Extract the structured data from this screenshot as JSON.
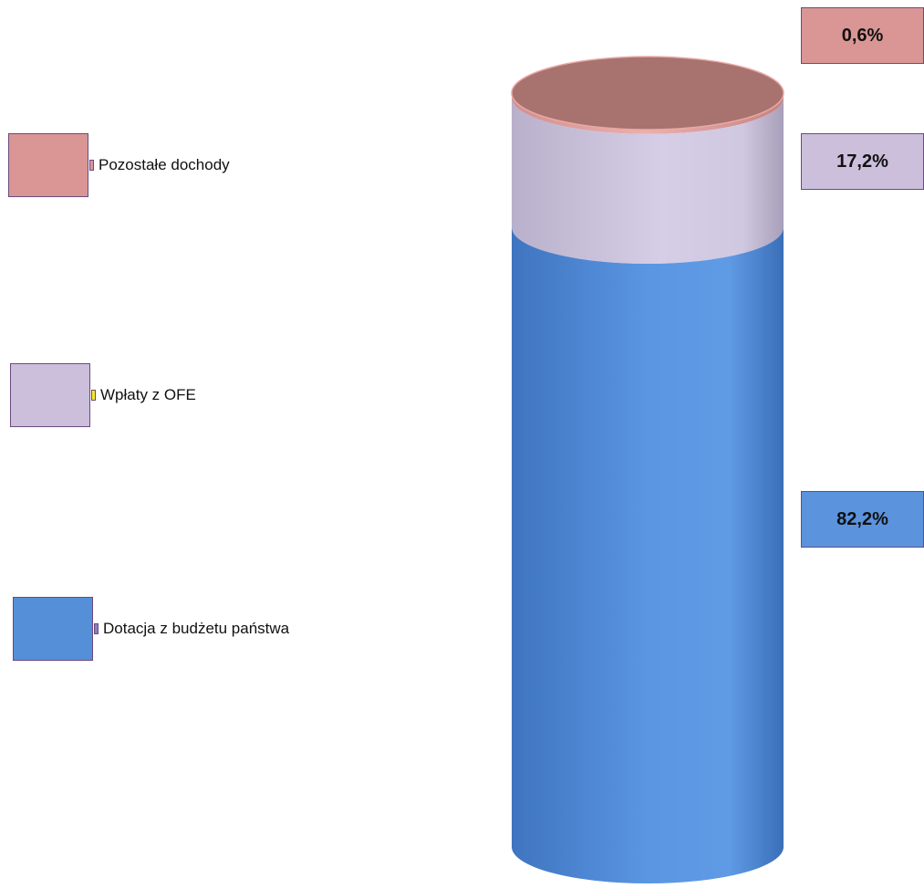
{
  "chart_data": {
    "type": "bar",
    "stacked": true,
    "shape": "cylinder",
    "grid": false,
    "legend_position": "left",
    "series": [
      {
        "name": "Dotacja z budżetu państwa",
        "value": 82.2,
        "label": "82,2%",
        "color": "#5b93dd"
      },
      {
        "name": "Wpłaty z OFE",
        "value": 17.2,
        "label": "17,2%",
        "color": "#cbbfdc"
      },
      {
        "name": "Pozostałe dochody",
        "value": 0.6,
        "label": "0,6%",
        "color": "#d99694"
      }
    ]
  },
  "legend": {
    "items": [
      {
        "label": "Pozostałe dochody",
        "swatch_color": "#d99694",
        "marker_color": "#d99694"
      },
      {
        "label": "Wpłaty z OFE",
        "swatch_color": "#cbbfdc",
        "marker_color": "#f2ea2a"
      },
      {
        "label": "Dotacja z budżetu państwa",
        "swatch_color": "#558fd8",
        "marker_color": "#8a7ec0"
      }
    ]
  }
}
